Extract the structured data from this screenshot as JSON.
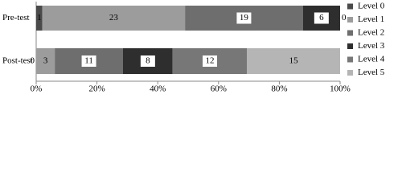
{
  "chart_data": {
    "type": "stacked-bar-percent",
    "categories": [
      "Pre-test",
      "Post-test"
    ],
    "series": [
      {
        "name": "Level 0",
        "color": "#4a4a4a",
        "values": [
          1,
          0
        ]
      },
      {
        "name": "Level 1",
        "color": "#9c9c9c",
        "values": [
          23,
          3
        ]
      },
      {
        "name": "Level 2",
        "color": "#6e6e6e",
        "values": [
          19,
          11
        ]
      },
      {
        "name": "Level 3",
        "color": "#2e2e2e",
        "values": [
          6,
          8
        ]
      },
      {
        "name": "Level 4",
        "color": "#777777",
        "values": [
          0,
          12
        ]
      },
      {
        "name": "Level 5",
        "color": "#b5b5b5",
        "values": [
          null,
          15
        ]
      }
    ],
    "xlim": [
      0,
      100
    ],
    "xticks": [
      {
        "value": 0,
        "label": "0%"
      },
      {
        "value": 20,
        "label": "20%"
      },
      {
        "value": 40,
        "label": "40%"
      },
      {
        "value": 60,
        "label": "60%"
      },
      {
        "value": 80,
        "label": "80%"
      },
      {
        "value": 100,
        "label": "100%"
      }
    ],
    "legend": "right"
  }
}
